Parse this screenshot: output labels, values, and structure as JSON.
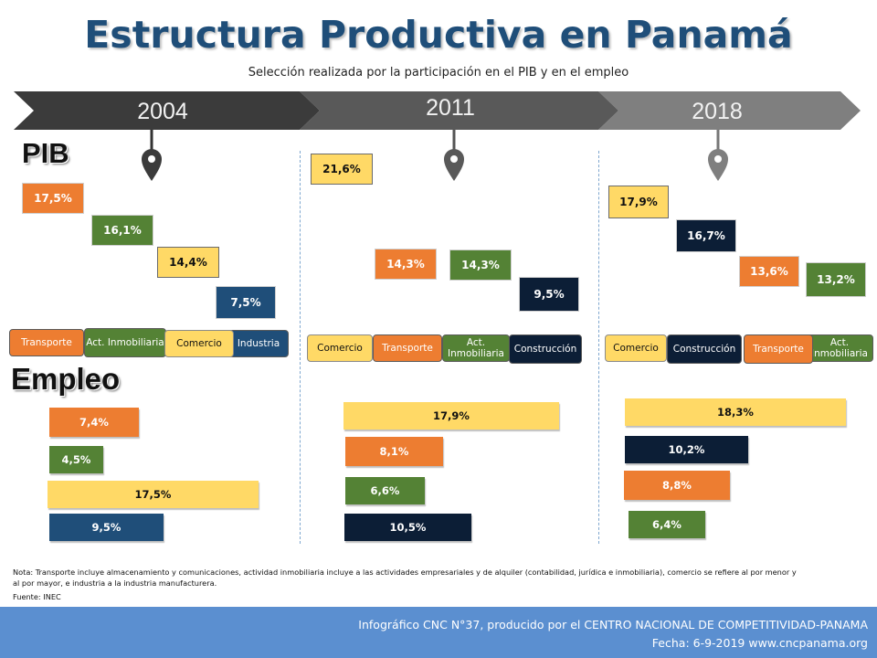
{
  "header": {
    "title": "Estructura Productiva en Panamá",
    "subtitle": "Selección realizada por la participación en el PIB y en el empleo"
  },
  "sections": {
    "pib": "PIB",
    "empleo": "Empleo"
  },
  "colors": {
    "transporte": "#ed7d31",
    "inmobiliaria": "#548235",
    "comercio": "#ffd966",
    "industria": "#1f4e79",
    "construccion": "#0c1e36"
  },
  "chart_data": {
    "type": "bar",
    "title": "Estructura Productiva en Panamá",
    "years": [
      {
        "year": "2004",
        "pib": [
          {
            "sector": "Transporte",
            "value_label": "17,5%",
            "value": 17.5
          },
          {
            "sector": "Act. Inmobiliaria",
            "value_label": "16,1%",
            "value": 16.1
          },
          {
            "sector": "Comercio",
            "value_label": "14,4%",
            "value": 14.4
          },
          {
            "sector": "Industria",
            "value_label": "7,5%",
            "value": 7.5
          }
        ],
        "empleo": [
          {
            "sector": "Transporte",
            "value_label": "7,4%",
            "value": 7.4
          },
          {
            "sector": "Act. Inmobiliaria",
            "value_label": "4,5%",
            "value": 4.5
          },
          {
            "sector": "Comercio",
            "value_label": "17,5%",
            "value": 17.5
          },
          {
            "sector": "Industria",
            "value_label": "9,5%",
            "value": 9.5
          }
        ]
      },
      {
        "year": "2011",
        "pib": [
          {
            "sector": "Comercio",
            "value_label": "21,6%",
            "value": 21.6
          },
          {
            "sector": "Transporte",
            "value_label": "14,3%",
            "value": 14.3
          },
          {
            "sector": "Act. Inmobiliaria",
            "value_label": "14,3%",
            "value": 14.3
          },
          {
            "sector": "Construcción",
            "value_label": "9,5%",
            "value": 9.5
          }
        ],
        "empleo": [
          {
            "sector": "Comercio",
            "value_label": "17,9%",
            "value": 17.9
          },
          {
            "sector": "Transporte",
            "value_label": "8,1%",
            "value": 8.1
          },
          {
            "sector": "Act. Inmobiliaria",
            "value_label": "6,6%",
            "value": 6.6
          },
          {
            "sector": "Construcción",
            "value_label": "10,5%",
            "value": 10.5
          }
        ]
      },
      {
        "year": "2018",
        "pib": [
          {
            "sector": "Comercio",
            "value_label": "17,9%",
            "value": 17.9
          },
          {
            "sector": "Construcción",
            "value_label": "16,7%",
            "value": 16.7
          },
          {
            "sector": "Transporte",
            "value_label": "13,6%",
            "value": 13.6
          },
          {
            "sector": "Act. Inmobiliaria",
            "value_label": "13,2%",
            "value": 13.2
          }
        ],
        "empleo": [
          {
            "sector": "Comercio",
            "value_label": "18,3%",
            "value": 18.3
          },
          {
            "sector": "Construcción",
            "value_label": "10,2%",
            "value": 10.2
          },
          {
            "sector": "Transporte",
            "value_label": "8,8%",
            "value": 8.8
          },
          {
            "sector": "Act. Inmobiliaria",
            "value_label": "6,4%",
            "value": 6.4
          }
        ]
      }
    ]
  },
  "note": "Nota: Transporte incluye almacenamiento y comunicaciones, actividad inmobiliaria incluye a las actividades empresariales y de alquiler (contabilidad, jurídica e inmobiliaria), comercio se refiere al por menor y al por mayor, e industria a la industria manufacturera.",
  "source": "Fuente: INEC",
  "footer": {
    "line1": "Infográfico CNC N°37, producido por el CENTRO NACIONAL DE COMPETITIVIDAD-PANAMA",
    "line2": "Fecha: 6-9-2019    www.cncpanama.org"
  }
}
